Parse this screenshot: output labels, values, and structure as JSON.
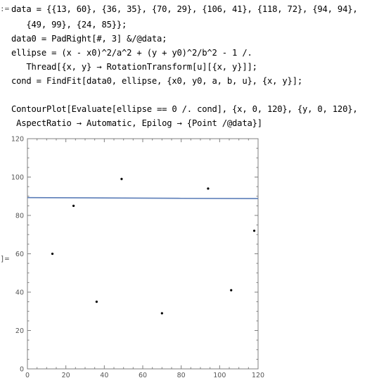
{
  "cell_markers": {
    "input": ":=",
    "output": "]="
  },
  "code_lines": [
    "data = {{13, 60}, {36, 35}, {70, 29}, {106, 41}, {118, 72}, {94, 94},",
    "   {49, 99}, {24, 85}};",
    "data0 = PadRight[#, 3] &/@data;",
    "ellipse = (x - x0)^2/a^2 + (y + y0)^2/b^2 - 1 /.",
    "   Thread[{x, y} → RotationTransform[u][{x, y}]];",
    "cond = FindFit[data0, ellipse, {x0, y0, a, b, u}, {x, y}];",
    "",
    "ContourPlot[Evaluate[ellipse == 0 /. cond], {x, 0, 120}, {y, 0, 120},",
    " AspectRatio → Automatic, Epilog → {Point /@data}]"
  ],
  "chart_data": {
    "type": "scatter",
    "x_ticks": [
      0,
      20,
      40,
      60,
      80,
      100,
      120
    ],
    "y_ticks": [
      0,
      20,
      40,
      60,
      80,
      100,
      120
    ],
    "xlim": [
      0,
      120
    ],
    "ylim": [
      0,
      120
    ],
    "points": [
      {
        "x": 13,
        "y": 60
      },
      {
        "x": 36,
        "y": 35
      },
      {
        "x": 70,
        "y": 29
      },
      {
        "x": 106,
        "y": 41
      },
      {
        "x": 118,
        "y": 72
      },
      {
        "x": 94,
        "y": 94
      },
      {
        "x": 49,
        "y": 99
      },
      {
        "x": 24,
        "y": 85
      }
    ],
    "contour": [
      [
        0,
        89.3
      ],
      [
        40,
        89.1
      ],
      [
        80,
        88.9
      ],
      [
        120,
        88.8
      ]
    ],
    "contour_color": "#5b7db8",
    "point_color": "#000000",
    "frame_color": "#7f7f7f"
  }
}
